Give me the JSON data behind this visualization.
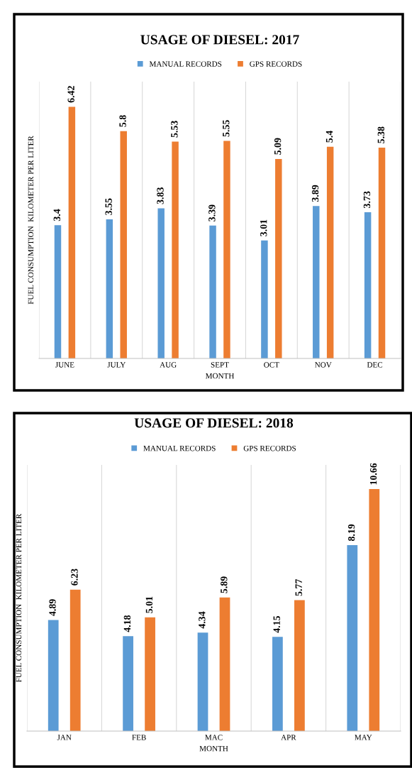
{
  "chart_data": [
    {
      "type": "bar",
      "title": "USAGE OF DIESEL: 2017",
      "xlabel": "MONTH",
      "ylabel": "FUEL CONSUMPTION  KILOMETER PER LITER",
      "categories": [
        "JUNE",
        "JULY",
        "AUG",
        "SEPT",
        "OCT",
        "NOV",
        "DEC"
      ],
      "series": [
        {
          "name": "MANUAL RECORDS",
          "color": "#5b9bd5",
          "values": [
            3.4,
            3.55,
            3.83,
            3.39,
            3.01,
            3.89,
            3.73
          ]
        },
        {
          "name": "GPS RECORDS",
          "color": "#ed7d31",
          "values": [
            6.42,
            5.8,
            5.53,
            5.55,
            5.09,
            5.4,
            5.38
          ]
        }
      ],
      "data_labels": true,
      "legend": "top",
      "grid": "x",
      "tick_labels": "x"
    },
    {
      "type": "bar",
      "title": "USAGE OF DIESEL: 2018",
      "xlabel": "MONTH",
      "ylabel": "FUEL CONSUMPTION  KILOMETER PER LITER",
      "categories": [
        "JAN",
        "FEB",
        "MAC",
        "APR",
        "MAY"
      ],
      "series": [
        {
          "name": "MANUAL RECORDS",
          "color": "#5b9bd5",
          "values": [
            4.89,
            4.18,
            4.34,
            4.15,
            8.19
          ]
        },
        {
          "name": "GPS RECORDS",
          "color": "#ed7d31",
          "values": [
            6.23,
            5.01,
            5.89,
            5.77,
            10.66
          ]
        }
      ],
      "data_labels": true,
      "legend": "top",
      "grid": "x",
      "tick_labels": "x"
    }
  ]
}
